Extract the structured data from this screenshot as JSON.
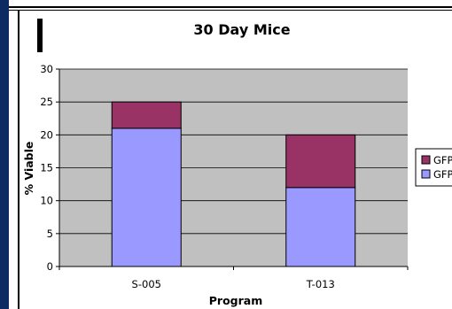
{
  "chart_data": {
    "type": "bar",
    "stacked": true,
    "title": "30 Day Mice",
    "xlabel": "Program",
    "ylabel": "% Viable",
    "categories": [
      "S-005",
      "T-013"
    ],
    "series": [
      {
        "name": "GFP",
        "values": [
          21,
          12
        ],
        "color": "#9999ff"
      },
      {
        "name": "GFP",
        "values": [
          4,
          8
        ],
        "color": "#993366"
      }
    ],
    "ylim": [
      0,
      30
    ],
    "yticks": [
      "0",
      "5",
      "10",
      "15",
      "20",
      "25",
      "30"
    ],
    "grid": true,
    "legend_position": "right",
    "plot_background": "#c0c0c0"
  }
}
